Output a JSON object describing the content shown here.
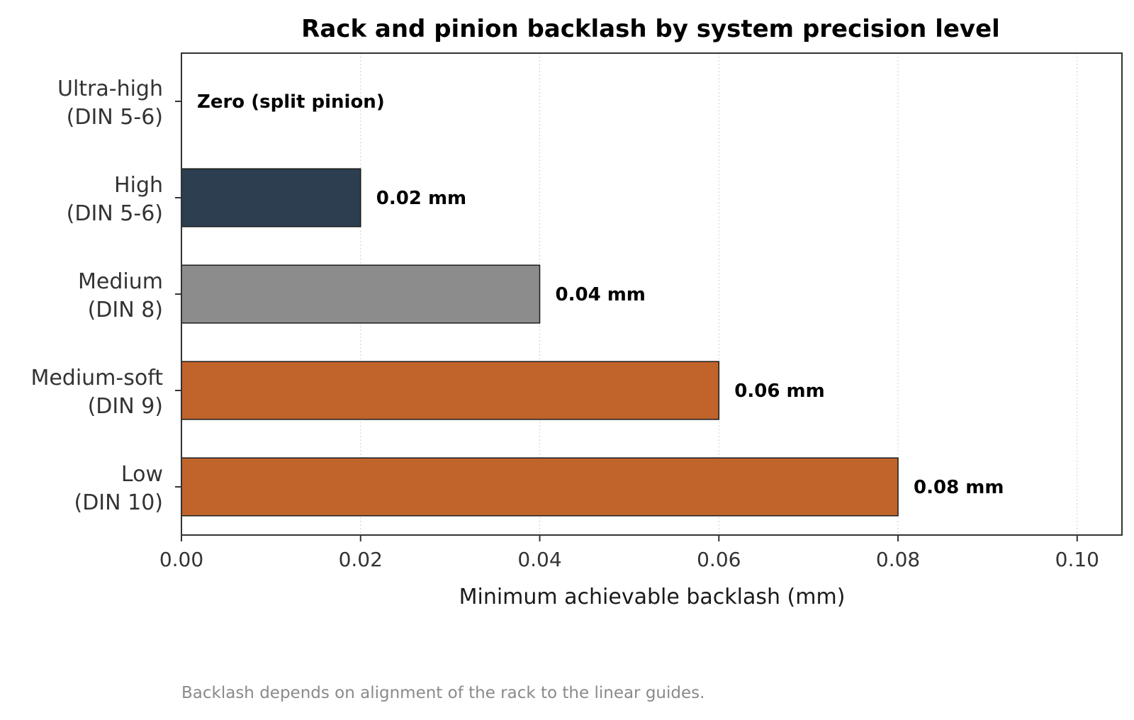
{
  "chart_data": {
    "type": "bar",
    "orientation": "horizontal",
    "title": "Rack and pinion backlash by system precision level",
    "xlabel": "Minimum achievable backlash (mm)",
    "ylabel": "",
    "xlim": [
      0,
      0.105
    ],
    "xticks": [
      "0.00",
      "0.02",
      "0.04",
      "0.06",
      "0.08",
      "0.10"
    ],
    "grid": "vertical dotted",
    "categories": [
      [
        "Ultra-high",
        "(DIN 5-6)"
      ],
      [
        "High",
        "(DIN 5-6)"
      ],
      [
        "Medium",
        "(DIN 8)"
      ],
      [
        "Medium-soft",
        "(DIN 9)"
      ],
      [
        "Low",
        "(DIN 10)"
      ]
    ],
    "values": [
      0,
      0.02,
      0.04,
      0.06,
      0.08
    ],
    "data_labels": [
      "Zero (split pinion)",
      "0.02 mm",
      "0.04 mm",
      "0.06 mm",
      "0.08 mm"
    ],
    "colors": [
      "#2c3e50",
      "#2c3e50",
      "#8c8c8c",
      "#c0642b",
      "#c0642b"
    ],
    "edge_color": "#1a1a1a"
  },
  "footnote": "Backlash depends on alignment of the rack to the linear guides."
}
